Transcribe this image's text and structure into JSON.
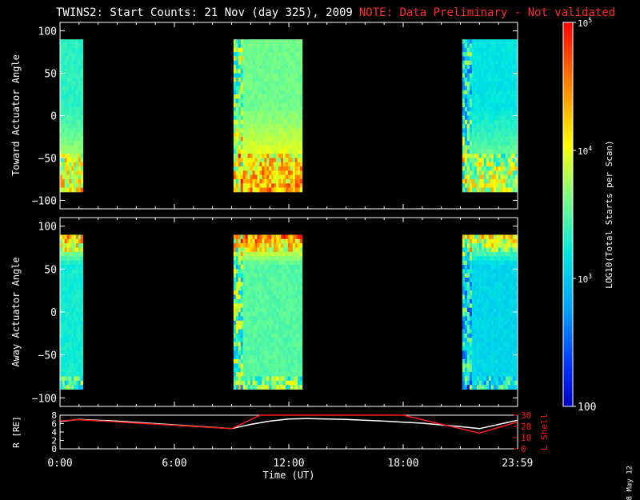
{
  "title": {
    "main": "TWINS2: Start Counts: 21 Nov (day 325), 2009",
    "note": "NOTE: Data Preliminary - Not validated"
  },
  "side_date": "8 May 12",
  "colors": {
    "background": "#000000",
    "axes": "#ffffff",
    "note": "#ff2a2a",
    "r_line": "#ffffff",
    "lshell_line": "#ff1a1a"
  },
  "chart_data": [
    {
      "type": "heatmap",
      "name": "toward",
      "ylabel": "Toward Actuator Angle",
      "ylim": [
        -110,
        110
      ],
      "yticks": [
        "100",
        "50",
        "0",
        "−50",
        "−100"
      ],
      "ytick_values": [
        100,
        50,
        0,
        -50,
        -100
      ],
      "xlim": [
        0,
        24
      ],
      "data_intervals_hours": [
        [
          0.0,
          1.2
        ],
        [
          9.1,
          12.7
        ],
        [
          21.1,
          23.99
        ]
      ],
      "angle_range": [
        -90,
        90
      ]
    },
    {
      "type": "heatmap",
      "name": "away",
      "ylabel": "Away Actuator Angle",
      "ylim": [
        -110,
        110
      ],
      "yticks": [
        "100",
        "50",
        "0",
        "−50",
        "−100"
      ],
      "ytick_values": [
        100,
        50,
        0,
        -50,
        -100
      ],
      "xlim": [
        0,
        24
      ],
      "data_intervals_hours": [
        [
          0.0,
          1.2
        ],
        [
          9.1,
          12.7
        ],
        [
          21.1,
          23.99
        ]
      ],
      "angle_range": [
        -90,
        90
      ]
    },
    {
      "type": "line",
      "name": "orbit",
      "ylabel_left": "R [RE]",
      "ylabel_right": "L Shell",
      "xlabel": "Time (UT)",
      "xticks": [
        "0:00",
        "6:00",
        "12:00",
        "18:00",
        "23:59"
      ],
      "xtick_values": [
        0,
        6,
        12,
        18,
        23.99
      ],
      "left_ylim": [
        0,
        8
      ],
      "left_yticks": [
        "8",
        "6",
        "4",
        "2",
        "0"
      ],
      "left_ytick_values": [
        8,
        6,
        4,
        2,
        0
      ],
      "right_ylim": [
        0,
        30
      ],
      "right_yticks": [
        "30",
        "20",
        "10",
        "0"
      ],
      "right_ytick_values": [
        30,
        20,
        10,
        0
      ],
      "series": [
        {
          "axis": "left",
          "x": [
            0,
            1,
            3,
            5,
            7,
            9,
            10,
            11,
            12,
            13,
            15,
            17,
            19,
            21,
            22,
            23,
            23.99
          ],
          "y": [
            6.5,
            7.0,
            6.6,
            6.0,
            5.4,
            4.8,
            5.8,
            6.6,
            7.1,
            7.2,
            7.0,
            6.6,
            6.1,
            5.3,
            4.8,
            5.8,
            6.8
          ]
        },
        {
          "axis": "right",
          "x": [
            0,
            1,
            9,
            10.5,
            10.6,
            18,
            22,
            23.99
          ],
          "y": [
            25,
            26,
            18,
            31,
            31,
            31,
            14,
            24
          ]
        }
      ]
    },
    {
      "type": "heatmap",
      "name": "colorbar",
      "ylabel": "LOG10(Total Starts per Scan)",
      "range": [
        100,
        100000
      ],
      "scale": "log",
      "ticks": [
        "100",
        "10^3",
        "10^4",
        "10^5"
      ],
      "tick_values": [
        100,
        1000,
        10000,
        100000
      ]
    }
  ]
}
